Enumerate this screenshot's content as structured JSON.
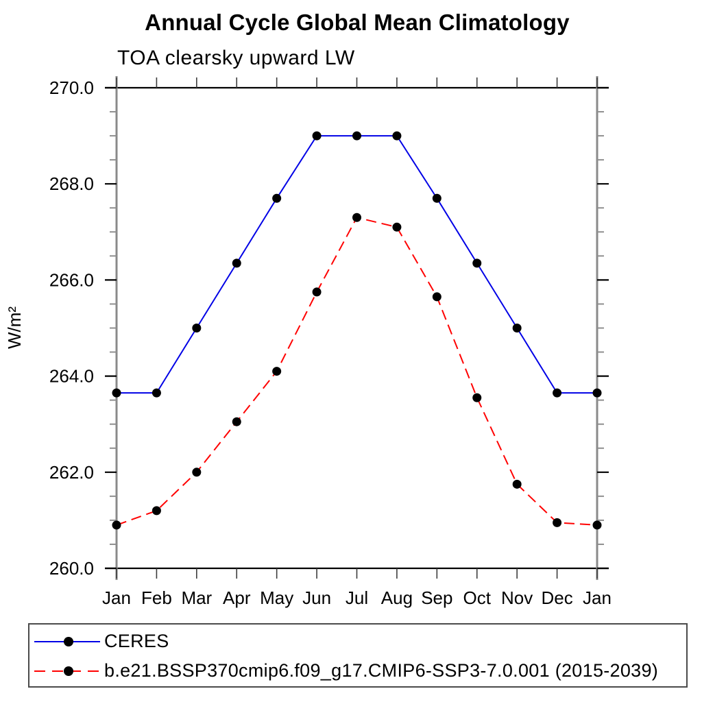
{
  "page": {
    "background": "#ffffff"
  },
  "chart_data": {
    "type": "line",
    "title": "Annual Cycle Global Mean Climatology",
    "subtitle": "TOA clearsky upward LW",
    "ylabel": "W/m²",
    "xlabel": "",
    "categories": [
      "Jan",
      "Feb",
      "Mar",
      "Apr",
      "May",
      "Jun",
      "Jul",
      "Aug",
      "Sep",
      "Oct",
      "Nov",
      "Dec",
      "Jan"
    ],
    "ylim": [
      260.0,
      270.0
    ],
    "y_major_step": 2.0,
    "y_minor_step": 0.5,
    "y_tick_labels": [
      "260.0",
      "262.0",
      "264.0",
      "266.0",
      "268.0",
      "270.0"
    ],
    "grid": false,
    "legend_position": "bottom",
    "marker": "filled-circle",
    "marker_color": "#000000",
    "series": [
      {
        "name": "CERES",
        "color": "#0000e6",
        "line_style": "solid",
        "values": [
          263.65,
          263.65,
          265.0,
          266.35,
          267.7,
          269.0,
          269.0,
          269.0,
          267.7,
          266.35,
          265.0,
          263.65,
          263.65
        ]
      },
      {
        "name": "b.e21.BSSP370cmip6.f09_g17.CMIP6-SSP3-7.0.001 (2015-2039)",
        "color": "#ff0000",
        "line_style": "dashed",
        "values": [
          260.9,
          261.2,
          262.0,
          263.05,
          264.1,
          265.75,
          267.3,
          267.1,
          265.65,
          263.55,
          261.75,
          260.95,
          260.9
        ]
      }
    ]
  }
}
